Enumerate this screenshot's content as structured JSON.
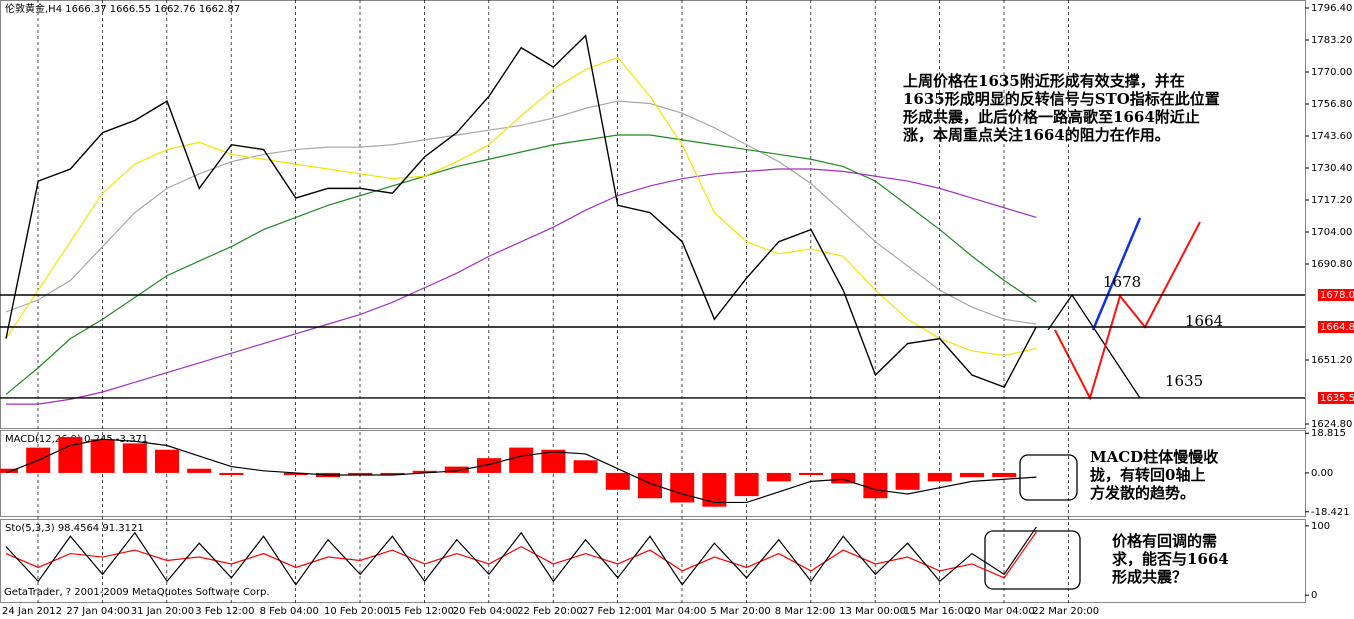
{
  "chart_data": [
    {
      "type": "line",
      "title": "伦敦黄金,H4  1666.37 1666.55 1662.76 1662.87",
      "categories": [
        "24 Jan 2012",
        null,
        "27 Jan 04:00",
        null,
        "31 Jan 20:00",
        null,
        "3 Feb 12:00",
        null,
        "8 Feb 04:00",
        null,
        "10 Feb 20:00",
        null,
        "15 Feb 12:00",
        null,
        "20 Feb 04:00",
        null,
        "22 Feb 20:00",
        null,
        "27 Feb 12:00",
        null,
        "1 Mar 04:00",
        null,
        "5 Mar 20:00",
        null,
        "8 Mar 12:00",
        null,
        "13 Mar 00:00",
        null,
        "15 Mar 16:00",
        null,
        "20 Mar 04:00",
        null,
        "22 Mar 20:00"
      ],
      "series": [
        {
          "color": "#a8a8a8",
          "values": [
            1671,
            1676,
            1684,
            1698,
            1712,
            1722,
            1728,
            1733,
            1736,
            1738,
            1739,
            1739,
            1740,
            1742,
            1744,
            1746,
            1748,
            1751,
            1755,
            1758,
            1757,
            1753,
            1747,
            1740,
            1733,
            1724,
            1712,
            1700,
            1690,
            1680,
            1673,
            1668,
            1666
          ]
        },
        {
          "color": "#1f8a1f",
          "values": [
            1637,
            1648,
            1660,
            1668,
            1677,
            1686,
            1692,
            1698,
            1705,
            1710,
            1715,
            1719,
            1723,
            1727,
            1731,
            1734,
            1737,
            1740,
            1742,
            1744,
            1744,
            1742,
            1740,
            1738,
            1736,
            1734,
            1731,
            1725,
            1715,
            1705,
            1694,
            1684,
            1675
          ]
        },
        {
          "color": "#a030c0",
          "values": [
            1633,
            1633,
            1635,
            1638,
            1642,
            1646,
            1650,
            1654,
            1658,
            1662,
            1666,
            1670,
            1675,
            1681,
            1687,
            1694,
            1700,
            1706,
            1713,
            1719,
            1723,
            1726,
            1728,
            1729,
            1730,
            1730,
            1729,
            1727,
            1725,
            1722,
            1718,
            1714,
            1710
          ]
        },
        {
          "color": "#f2e600",
          "values": [
            1660,
            1680,
            1700,
            1720,
            1732,
            1738,
            1741,
            1736,
            1734,
            1732,
            1730,
            1728,
            1726,
            1727,
            1733,
            1740,
            1752,
            1763,
            1771,
            1776,
            1760,
            1740,
            1712,
            1700,
            1695,
            1697,
            1694,
            1680,
            1668,
            1660,
            1655,
            1653,
            1656
          ]
        },
        {
          "color": "#000000",
          "values": [
            1660,
            1725,
            1730,
            1745,
            1750,
            1758,
            1722,
            1740,
            1738,
            1718,
            1722,
            1722,
            1720,
            1735,
            1745,
            1760,
            1780,
            1772,
            1785,
            1715,
            1712,
            1700,
            1668,
            1685,
            1700,
            1705,
            1680,
            1645,
            1658,
            1660,
            1645,
            1640,
            1665
          ]
        }
      ],
      "ylim": [
        1624.8,
        1796.4
      ],
      "yticks": [
        {
          "value": 1796.4,
          "label": "1796.40"
        },
        {
          "value": 1783.2,
          "label": "1783.20"
        },
        {
          "value": 1770,
          "label": "1770.00"
        },
        {
          "value": 1756.8,
          "label": "1756.80"
        },
        {
          "value": 1743.6,
          "label": "1743.60"
        },
        {
          "value": 1730.4,
          "label": "1730.40"
        },
        {
          "value": 1717.2,
          "label": "1717.20"
        },
        {
          "value": 1704,
          "label": "1704.00"
        },
        {
          "value": 1690.8,
          "label": "1690.80"
        },
        {
          "value": 1651.2,
          "label": "1651.20"
        },
        {
          "value": 1624.8,
          "label": "1624.80"
        }
      ],
      "levels": [
        1678.01,
        1664.81,
        1635.54
      ],
      "level_notes": [
        "1678",
        "1664",
        "1635"
      ],
      "annotations": [
        "上周价格在1635附近形成有效支撑，并在",
        "1635形成明显的反转信号与STO指标在此位置",
        "形成共震，此后价格一路高歌至1664附近止",
        "涨，本周重点关注1664的阻力在作用。"
      ]
    },
    {
      "type": "bar",
      "title": "MACD(12,26,9) 0.245 -3.371",
      "series": [
        {
          "color": "#ff0000",
          "values": [
            2,
            12,
            17,
            16,
            14,
            11,
            2,
            -1,
            0,
            -1,
            -2,
            -1,
            -1,
            1,
            3,
            7,
            12,
            11,
            6,
            -8,
            -12,
            -14,
            -16,
            -11,
            -4,
            -1,
            -5,
            -12,
            -8,
            -4,
            -2,
            -2,
            0
          ]
        },
        {
          "color": "#000000",
          "type": "line",
          "values": [
            0,
            6,
            13,
            16,
            15,
            13,
            8,
            3,
            1,
            0,
            -1,
            -1,
            -1,
            0,
            1,
            4,
            8,
            10,
            9,
            2,
            -5,
            -10,
            -14,
            -14,
            -9,
            -4,
            -3,
            -8,
            -10,
            -7,
            -4,
            -3,
            -2
          ]
        }
      ],
      "ylim": [
        -19.95,
        20.35
      ],
      "yticks": [
        18.815,
        {
          "value": 0,
          "label": "0.00"
        },
        -18.421
      ],
      "annotations": [
        "MACD柱体慢慢收",
        "拢，有转回0轴上",
        "方发散的趋势。"
      ]
    },
    {
      "type": "line",
      "title": "Sto(5,3,3) 98.4564 91.3121",
      "series": [
        {
          "color": "#ff0000",
          "values": [
            60,
            40,
            60,
            55,
            65,
            50,
            55,
            45,
            60,
            40,
            55,
            50,
            65,
            45,
            60,
            45,
            70,
            45,
            60,
            45,
            65,
            35,
            55,
            40,
            60,
            35,
            65,
            45,
            55,
            35,
            45,
            25,
            91.3121
          ]
        },
        {
          "color": "#000000",
          "values": [
            70,
            20,
            85,
            30,
            90,
            20,
            75,
            25,
            85,
            15,
            80,
            30,
            85,
            20,
            80,
            30,
            90,
            20,
            80,
            25,
            85,
            15,
            75,
            25,
            80,
            20,
            85,
            30,
            75,
            20,
            60,
            30,
            98.4564
          ]
        }
      ],
      "ylim": [
        -7,
        107
      ],
      "yticks": [
        100,
        0
      ],
      "annotations": [
        "价格有回调的需",
        "求，能否与1664",
        "形成共震？"
      ],
      "footer": "GetaTrader, ? 2001-2009 MetaQuotes Software Corp."
    }
  ]
}
